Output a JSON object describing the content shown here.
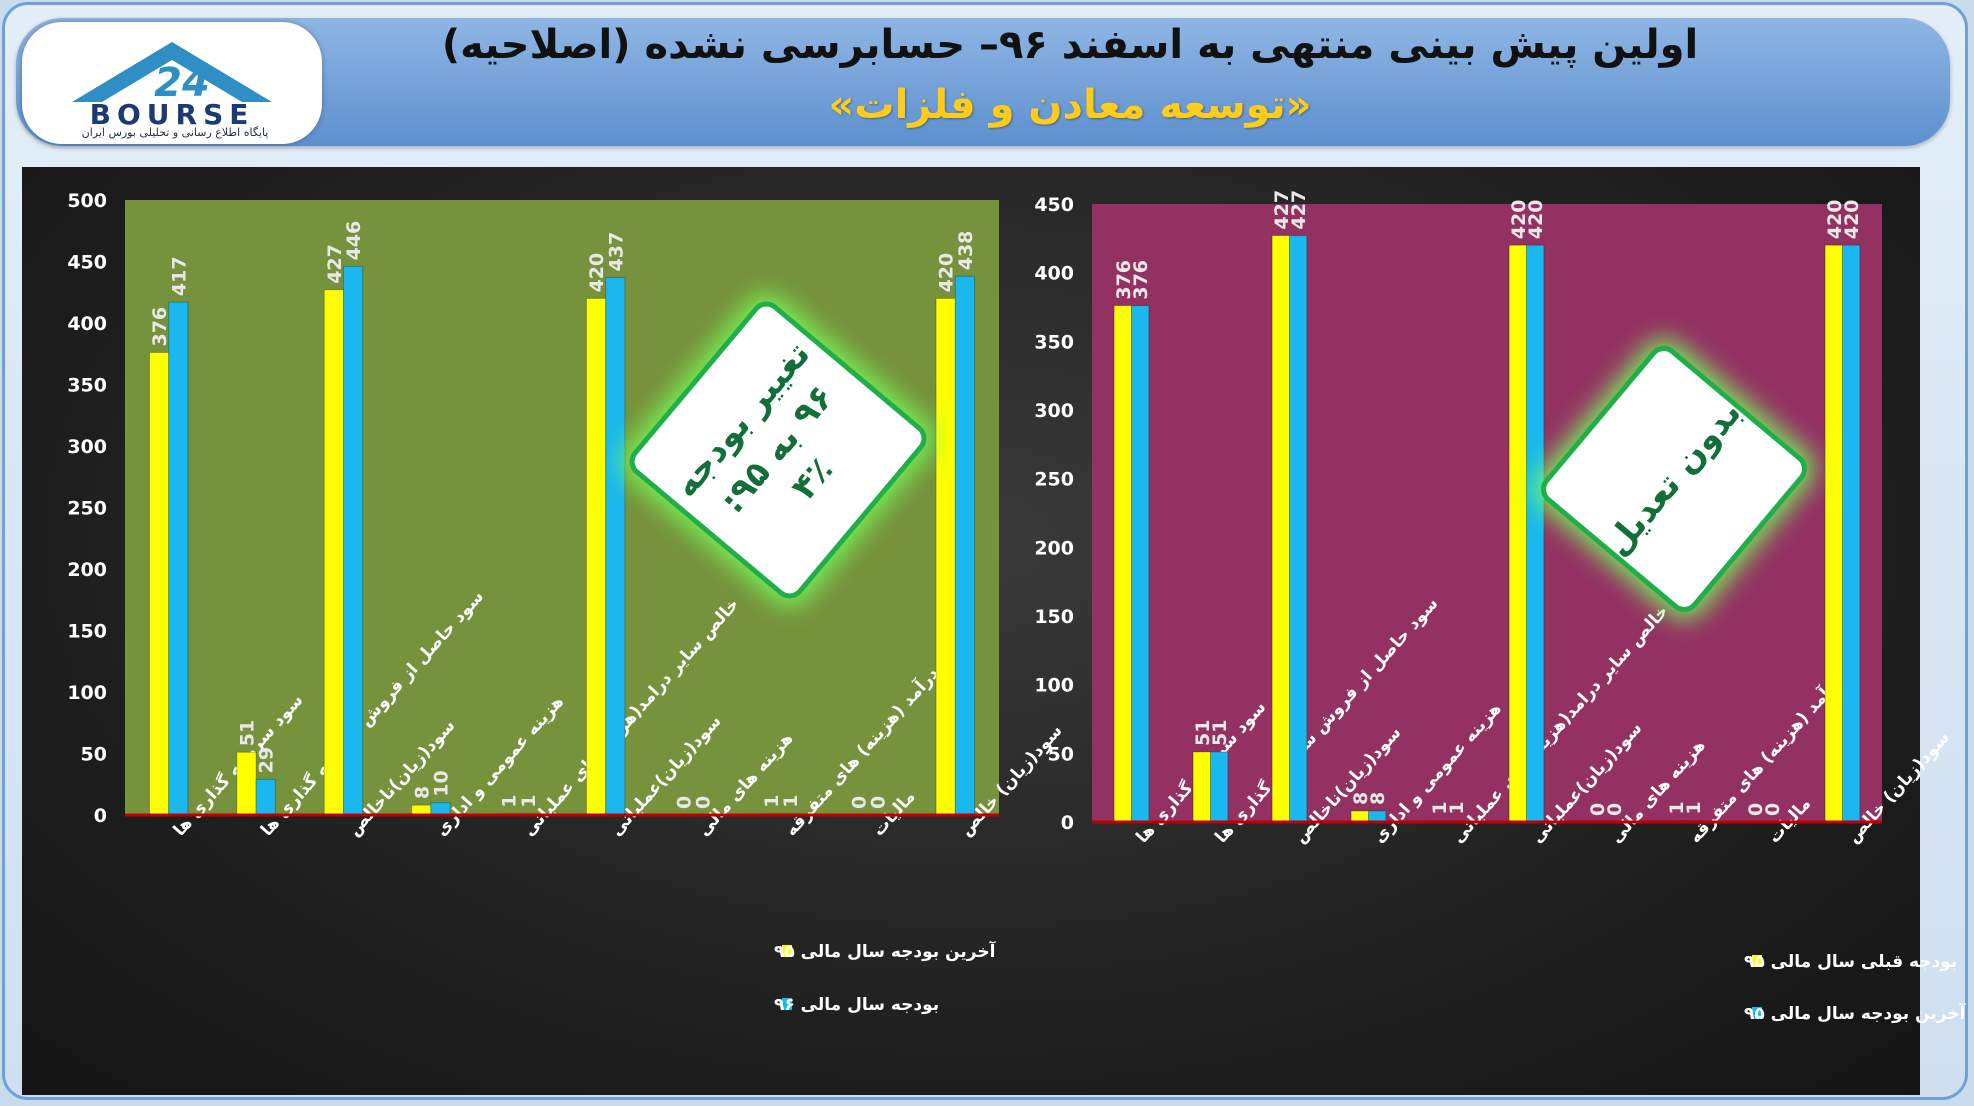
{
  "header": {
    "title": "اولین پیش بینی منتهی به اسفند ۹۶– حسابرسی نشده (اصلاحیه)",
    "subtitle": "«توسعه معادن و فلزات»",
    "logo_text": "BOURSE",
    "logo_number": "24",
    "logo_tagline": "پایگاه اطلاع رسانی و تحلیلی بورس ایران"
  },
  "badges": {
    "left": [
      "تغییر بودجه",
      "۹۶ به ۹۵:",
      "۴٪"
    ],
    "right": [
      "بدون تعدیل"
    ]
  },
  "colors": {
    "yellow": "#ffff00",
    "blue": "#1ab8ee",
    "left_bg": "#76923c",
    "right_bg": "#943163",
    "baseline": "#c00000"
  },
  "chart_data": [
    {
      "type": "bar",
      "categories": [
        "سود سرمایه گذاری ها",
        "سود حاصل از فروش سرمایه گذاری ها",
        "سود(زیان)ناخالص",
        "هزینه عمومی و اداری",
        "خالص سایر درامد(هزینه)های عملیاتی",
        "سود(زیان)عملیاتی",
        "هزینه های مالی",
        "درآمد (هزینه) های متفرقه",
        "مالیات",
        "سود(زیان) خالص"
      ],
      "series": [
        {
          "name": "آخرین بودجه سال مالی ۹۵",
          "color": "#ffff00",
          "values": [
            376,
            51,
            427,
            8,
            1,
            420,
            0,
            1,
            0,
            420
          ]
        },
        {
          "name": "بودجه سال مالی ۹۶",
          "color": "#1ab8ee",
          "values": [
            417,
            29,
            446,
            10,
            1,
            437,
            0,
            1,
            0,
            438
          ]
        }
      ],
      "ylim": [
        0,
        500
      ],
      "yticks": [
        0,
        50,
        100,
        150,
        200,
        250,
        300,
        350,
        400,
        450,
        500
      ],
      "legend_position": "bottom-right"
    },
    {
      "type": "bar",
      "categories": [
        "سود سرمایه گذاری ها",
        "سود حاصل از فروش سرمایه گذاری ها",
        "سود(زیان)ناخالص",
        "هزینه عمومی و اداری",
        "خالص سایر درامد(هزینه)های عملیاتی",
        "سود(زیان)عملیاتی",
        "هزینه های مالی",
        "درآمد (هزینه) های متفرقه",
        "مالیات",
        "سود(زیان) خالص"
      ],
      "series": [
        {
          "name": "بودجه قبلی سال مالی ۹۵",
          "color": "#ffff00",
          "values": [
            376,
            51,
            427,
            8,
            1,
            420,
            0,
            1,
            0,
            420
          ]
        },
        {
          "name": "آخرین بودجه سال مالی ۹۵",
          "color": "#1ab8ee",
          "values": [
            376,
            51,
            427,
            8,
            1,
            420,
            0,
            1,
            0,
            420
          ]
        }
      ],
      "ylim": [
        0,
        450
      ],
      "yticks": [
        0,
        50,
        100,
        150,
        200,
        250,
        300,
        350,
        400,
        450
      ],
      "legend_position": "bottom-right"
    }
  ]
}
